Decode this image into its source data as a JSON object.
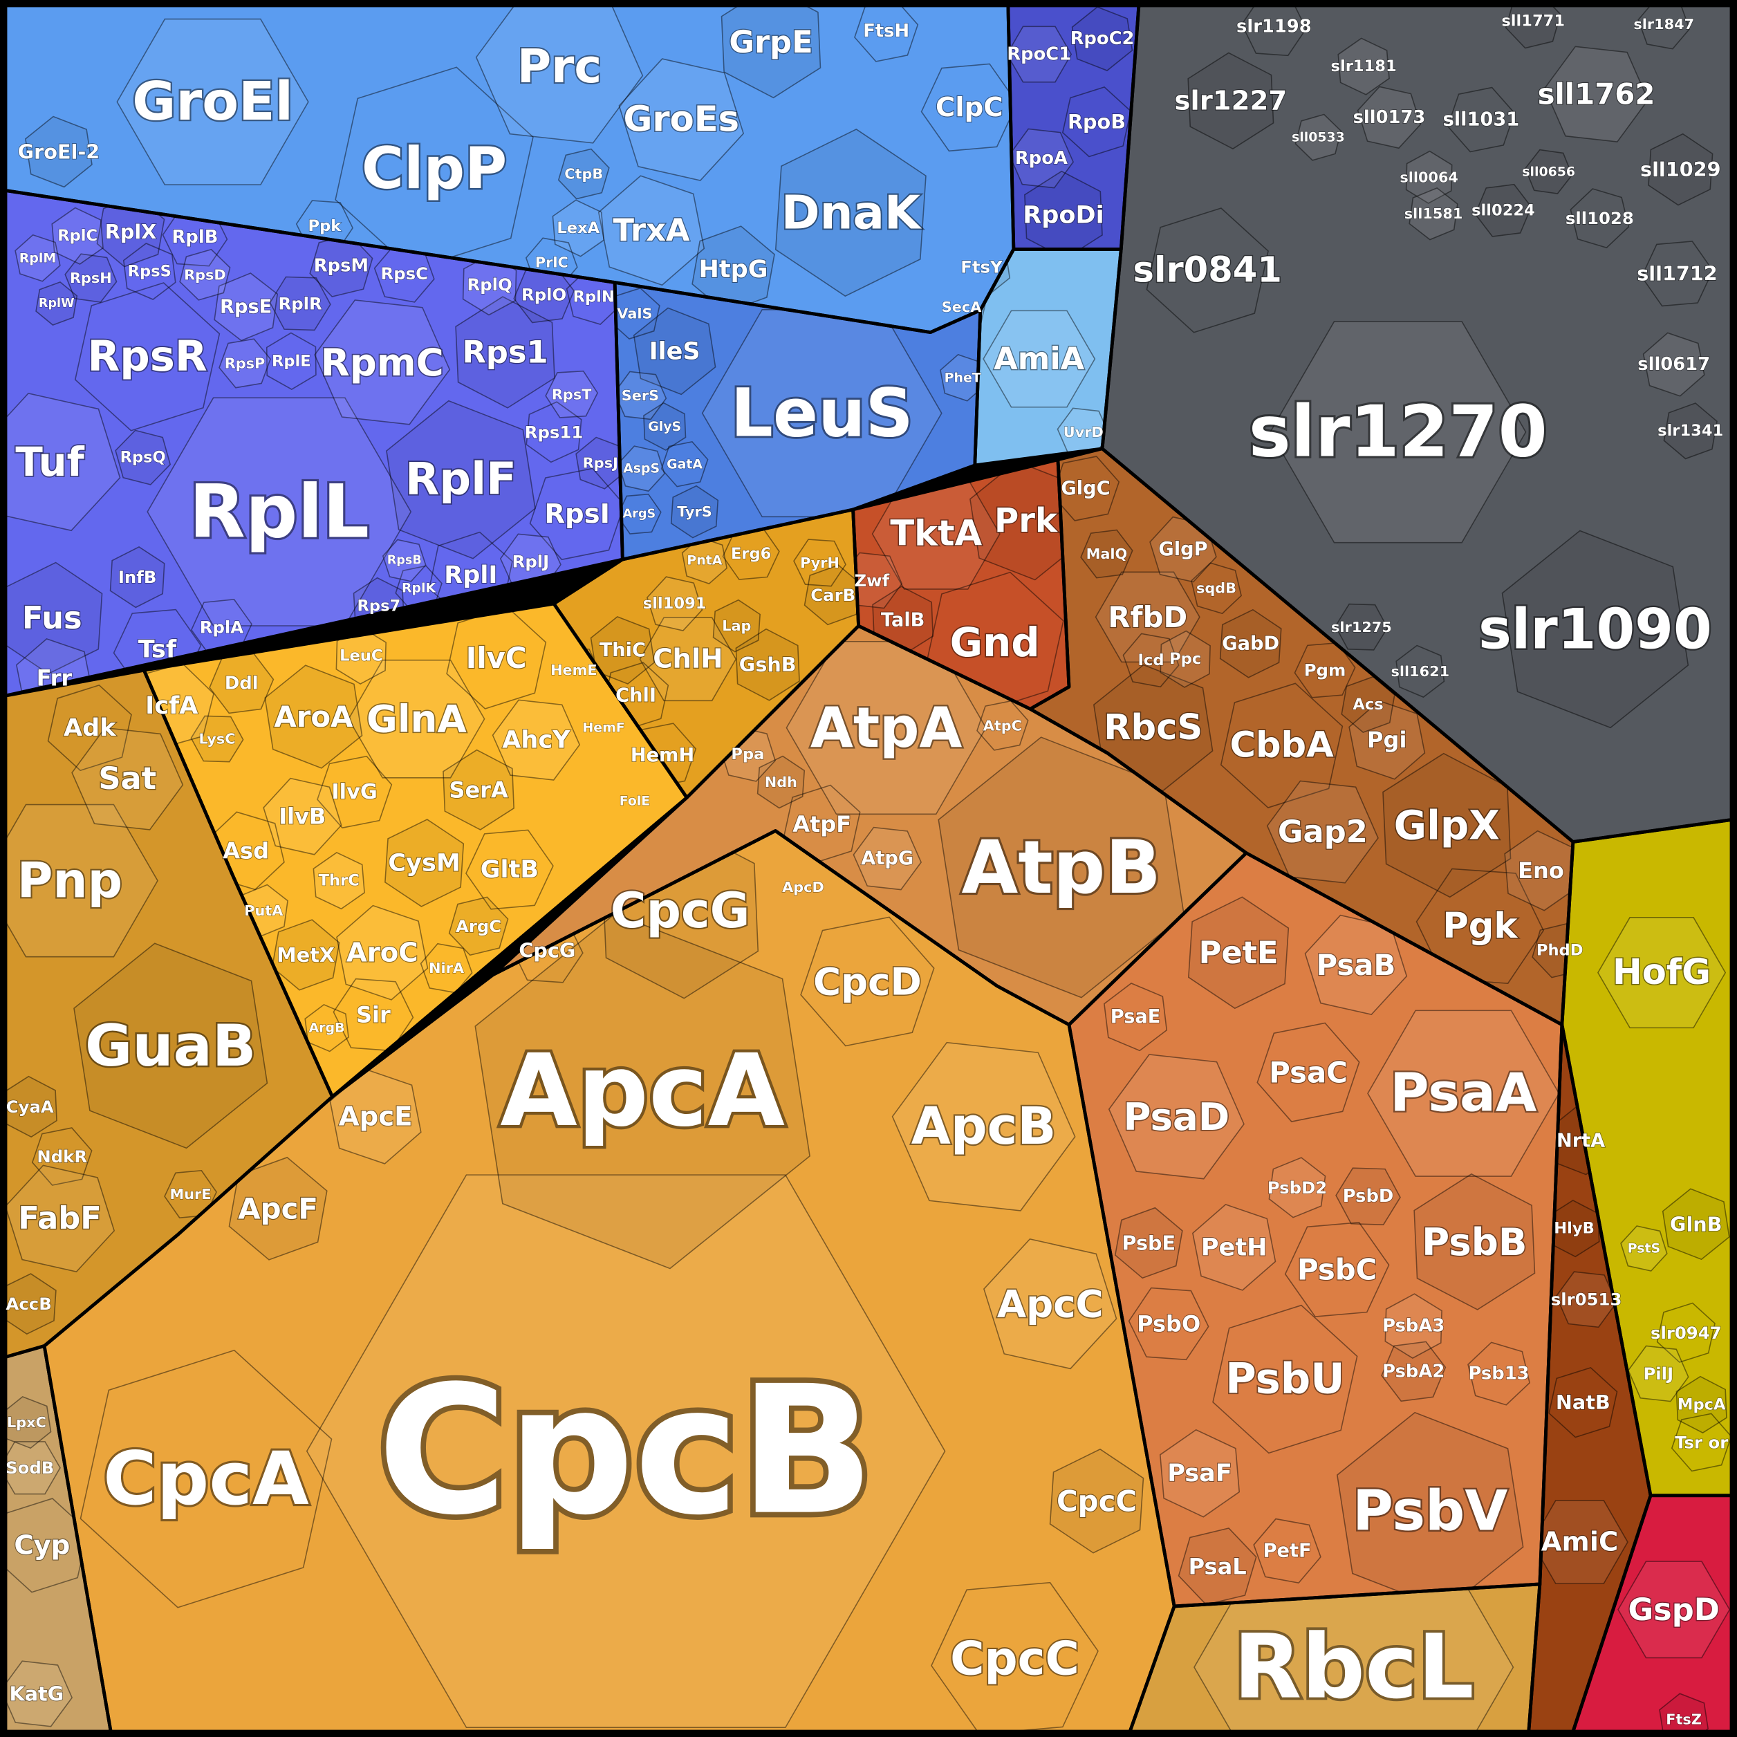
{
  "chart_data": {
    "type": "treemap",
    "series": [
      {
        "color": "#5b9cf0",
        "categories": [
          "GroEl",
          "GroEl-2",
          "ClpP",
          "Prc",
          "GrpE",
          "FtsH",
          "GroEs",
          "DnaK",
          "ClpC",
          "TrxA",
          "HtpG",
          "Ppk",
          "LexA",
          "CtpB",
          "PrlC"
        ],
        "values": [
          23,
          3.2,
          27,
          17.6,
          7.8,
          2.6,
          10.2,
          17.6,
          5.8,
          7.8,
          4.8,
          2,
          2,
          1.7,
          1.7
        ]
      },
      {
        "color": "#4a50cc",
        "categories": [
          "RpoC1",
          "RpoC2",
          "RpoB",
          "RpoA",
          "RpoDi"
        ],
        "values": [
          2.6,
          2.6,
          3.2,
          2.6,
          4.8
        ]
      },
      {
        "color": "#7fbff0",
        "categories": [
          "AmiA",
          "FtsY",
          "SecA",
          "UvrD"
        ],
        "values": [
          7.8,
          2.3,
          1.7,
          1.7
        ]
      },
      {
        "color": "#4d7fe0",
        "categories": [
          "LeuS",
          "IleS",
          "ValS",
          "SerS",
          "GlyS",
          "GatA",
          "AspS",
          "TyrS",
          "ArgS",
          "PheT"
        ],
        "values": [
          36,
          4.8,
          1.7,
          1.7,
          1.4,
          1.4,
          1.4,
          1.7,
          1.2,
          1.4
        ]
      },
      {
        "color": "#6368ee",
        "categories": [
          "RplL",
          "RplF",
          "RpsR",
          "RpmC",
          "Rps1",
          "RpsI",
          "Tuf",
          "Fus",
          "Tsf",
          "Frr",
          "RplX",
          "RplB",
          "RplC",
          "RpsM",
          "RpsC",
          "RplQ",
          "RplO",
          "RplN",
          "RpsE",
          "RplR",
          "RpsS",
          "RpsD",
          "RpsH",
          "RplE",
          "RpsP",
          "RpsQ",
          "Rps11",
          "RpsT",
          "RpsJ",
          "RplI",
          "RplJ",
          "Rps7",
          "RplK",
          "RpsB",
          "InfB",
          "RplA",
          "RplM",
          "RplW"
        ],
        "values": [
          43.6,
          16,
          14.4,
          11.6,
          7.8,
          5.8,
          13,
          7.8,
          4.8,
          4,
          3.2,
          2.6,
          2,
          2.6,
          2.3,
          2.3,
          2.3,
          2,
          2.9,
          2.3,
          2,
          1.7,
          1.7,
          2,
          1.7,
          2,
          2.3,
          1.7,
          1.7,
          4.8,
          2.3,
          2,
          1.4,
          1.2,
          2.3,
          2.3,
          1.4,
          1.2
        ]
      },
      {
        "color": "#fbb82a",
        "categories": [
          "GlnA",
          "AroA",
          "IlvC",
          "AhcY",
          "SerA",
          "IlvG",
          "IlvB",
          "CysM",
          "GltB",
          "AroC",
          "MetX",
          "Sir",
          "ThrC",
          "ArgC",
          "NirA",
          "LeuC",
          "Ddl",
          "Asd",
          "PutA",
          "LysC",
          "ArgB",
          "IcfA"
        ],
        "values": [
          11.6,
          6.8,
          6.8,
          4.8,
          4,
          3.6,
          4,
          4.8,
          4.8,
          5.8,
          3.2,
          4,
          2,
          2.3,
          1.7,
          2,
          2.6,
          4,
          1.7,
          1.7,
          1.4,
          4.8
        ]
      },
      {
        "color": "#e4a020",
        "categories": [
          "ChlH",
          "ThiC",
          "ChlI",
          "HemE",
          "GshB",
          "HemH",
          "sll1091",
          "Lap",
          "Erg6",
          "PntA",
          "CarB",
          "PyrH",
          "HemF",
          "FolE"
        ],
        "values": [
          5.8,
          2.9,
          2.9,
          1.7,
          3.2,
          2.9,
          2,
          1.7,
          2,
          1.4,
          2.3,
          1.7,
          1.4,
          1.4
        ]
      },
      {
        "color": "#d4962a",
        "categories": [
          "Pnp",
          "GuaB",
          "Adk",
          "Sat",
          "CyaA",
          "NdkR",
          "FabF",
          "AccB",
          "MurE"
        ],
        "values": [
          19.4,
          27,
          4.8,
          7.8,
          2.3,
          2.3,
          7.8,
          2.3,
          1.7
        ]
      },
      {
        "color": "#c9a266",
        "categories": [
          "SodB",
          "LpxC",
          "Cyp",
          "KatG"
        ],
        "values": [
          2.3,
          1.7,
          5.8,
          3.2
        ]
      },
      {
        "color": "#eba53c",
        "categories": [
          "CpcB",
          "ApcA",
          "CpcA",
          "ApcB",
          "CpcG",
          "CpcD",
          "ApcC",
          "CpcC",
          "CpcC",
          "ApcE",
          "ApcF",
          "CpcG"
        ],
        "values": [
          256,
          81,
          43.6,
          21.2,
          19.4,
          11.6,
          11.6,
          6.8,
          17.6,
          5.8,
          6.8,
          3.2
        ]
      },
      {
        "color": "#d88d46",
        "categories": [
          "AtpA",
          "AtpB",
          "AtpF",
          "AtpG",
          "ApcD",
          "AtpC",
          "Ppa",
          "Ndh"
        ],
        "values": [
          25,
          43.6,
          4,
          2.9,
          1.7,
          1.7,
          2,
          1.7
        ]
      },
      {
        "color": "#c65028",
        "categories": [
          "TktA",
          "Prk",
          "Gnd",
          "Zwf",
          "TalB"
        ],
        "values": [
          10.2,
          9,
          13,
          2.3,
          2.9
        ]
      },
      {
        "color": "#b2652a",
        "categories": [
          "RfbD",
          "RbcS",
          "CbbA",
          "Gap2",
          "GlpX",
          "GlgC",
          "GlgP",
          "GabD",
          "Pgm",
          "Pgi",
          "Acs",
          "Pgk",
          "Eno",
          "PhdD",
          "Icd",
          "Ppc",
          "MalQ",
          "sqdB"
        ],
        "values": [
          6.8,
          10.2,
          10.2,
          7.8,
          13,
          2.9,
          2.9,
          2.9,
          2.3,
          4,
          2,
          10.2,
          4,
          2,
          2,
          2,
          1.7,
          1.7
        ]
      },
      {
        "color": "#dc7e44",
        "categories": [
          "PsaA",
          "PsbV",
          "PsbU",
          "PsaD",
          "PsbB",
          "PsaC",
          "PsaB",
          "PetE",
          "PsbC",
          "PetH",
          "PsbE",
          "PsbO",
          "PsaF",
          "PsaL",
          "PetF",
          "PsbA3",
          "PsbA2",
          "Psb13",
          "PsbD2",
          "PsbD",
          "PsaE"
        ],
        "values": [
          23,
          25,
          14.4,
          11.6,
          11.6,
          6.8,
          6.8,
          7.8,
          6.8,
          4.8,
          3.2,
          4,
          4.8,
          4,
          2.9,
          2.6,
          2.6,
          2.6,
          2.3,
          2.6,
          2.9
        ]
      },
      {
        "color": "#d8a040",
        "categories": [
          "RbcL"
        ],
        "values": [
          64
        ]
      },
      {
        "color": "#55595f",
        "categories": [
          "slr1270",
          "slr1090",
          "slr0841",
          "sll1762",
          "slr1227",
          "sll1031",
          "sll0173",
          "sll1029",
          "sll1712",
          "sll0617",
          "slr1341",
          "slr1198",
          "slr1181",
          "sll1771",
          "slr1847",
          "sll0064",
          "sll0224",
          "sll1028",
          "sll1581",
          "slr1275",
          "sll1621",
          "sll0533",
          "sll0656"
        ],
        "values": [
          41,
          25,
          10.2,
          6.8,
          5.8,
          2.9,
          2.6,
          3.2,
          3.2,
          2.6,
          2,
          2.6,
          2,
          2,
          1.7,
          1.7,
          2,
          2.3,
          1.7,
          1.7,
          1.7,
          1.4,
          1.4
        ]
      },
      {
        "color": "#c9b800",
        "categories": [
          "HofG",
          "GlnB",
          "slr0947",
          "PilJ",
          "MpcA",
          "Tsr or",
          "PstS"
        ],
        "values": [
          10.2,
          3.2,
          2.3,
          2.3,
          2,
          2.3,
          1.4
        ]
      },
      {
        "color": "#9a4212",
        "categories": [
          "AmiC",
          "NrtA",
          "NatB",
          "slr0513",
          "HlyB"
        ],
        "values": [
          5.8,
          2.9,
          3.2,
          2.3,
          2
        ]
      },
      {
        "color": "#d81c40",
        "categories": [
          "GspD",
          "FtsZ"
        ],
        "values": [
          7.8,
          1.7
        ]
      }
    ]
  }
}
